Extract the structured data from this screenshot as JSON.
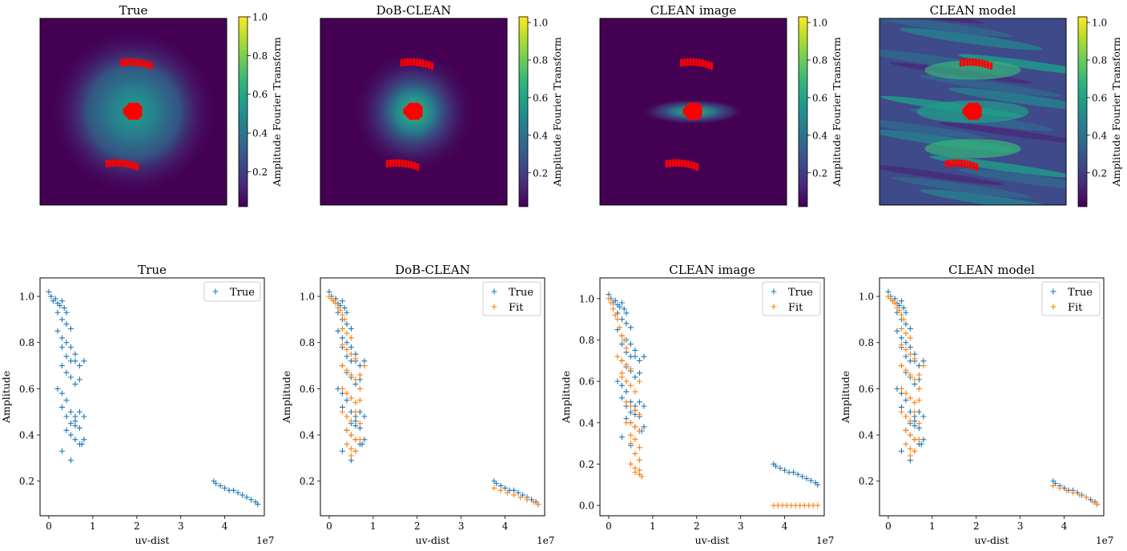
{
  "colors": {
    "true_series": "#1f77b4",
    "fit_series": "#ff7f0e",
    "uv_points": "#ff0000",
    "viridis": [
      "#440154",
      "#482878",
      "#3e4a89",
      "#31688e",
      "#26828e",
      "#1f9e89",
      "#35b779",
      "#6dcd59",
      "#b4de2c",
      "#fde725"
    ]
  },
  "image_panels": [
    {
      "title": "True",
      "colorbar_label": "Amplitude Fourier Transform",
      "colorbar_ticks": [
        "0.2",
        "0.4",
        "0.6",
        "0.8",
        "1.0"
      ],
      "colorbar_range": [
        0.02,
        1.0
      ],
      "pattern": "gaussian halo"
    },
    {
      "title": "DoB-CLEAN",
      "colorbar_label": "Amplitude Fourier Transform",
      "colorbar_ticks": [
        "0.2",
        "0.4",
        "0.6",
        "0.8",
        "1.0"
      ],
      "colorbar_range": [
        0.02,
        1.03
      ],
      "pattern": "compact halo"
    },
    {
      "title": "CLEAN image",
      "colorbar_label": "Amplitude Fourier Transform",
      "colorbar_ticks": [
        "0.2",
        "0.4",
        "0.6",
        "0.8",
        "1.0"
      ],
      "colorbar_range": [
        0.02,
        1.03
      ],
      "pattern": "horizontal elongated blob"
    },
    {
      "title": "CLEAN model",
      "colorbar_label": "Amplitude Fourier Transform",
      "colorbar_ticks": [
        "0.2",
        "0.4",
        "0.6",
        "0.8",
        "1.0"
      ],
      "colorbar_range": [
        0.02,
        1.03
      ],
      "pattern": "striped noise"
    }
  ],
  "chart_data": [
    {
      "type": "scatter",
      "title": "True",
      "xlabel": "uv-dist",
      "ylabel": "Amplitude",
      "x_scale_label": "1e7",
      "xlim": [
        -0.2,
        4.9
      ],
      "ylim": [
        0.05,
        1.08
      ],
      "xticks": [
        "0",
        "1",
        "2",
        "3",
        "4"
      ],
      "yticks": [
        "0.2",
        "0.4",
        "0.6",
        "0.8",
        "1.0"
      ],
      "legend": [
        "True"
      ],
      "legend_position": "upper right",
      "marker": "+",
      "series": [
        {
          "name": "True",
          "color": "#1f77b4",
          "x": [
            0.0,
            0.05,
            0.1,
            0.15,
            0.2,
            0.25,
            0.3,
            0.35,
            0.4,
            0.2,
            0.3,
            0.4,
            0.5,
            0.2,
            0.3,
            0.4,
            0.5,
            0.6,
            0.3,
            0.4,
            0.5,
            0.3,
            0.4,
            0.5,
            0.6,
            0.7,
            0.2,
            0.3,
            0.4,
            0.5,
            0.6,
            0.7,
            0.8,
            0.3,
            0.4,
            0.5,
            0.6,
            0.7,
            0.4,
            0.5,
            0.6,
            0.3,
            0.5,
            0.6,
            0.7,
            0.6,
            0.7,
            0.8,
            0.75,
            0.8,
            3.75,
            3.8,
            3.9,
            4.0,
            4.1,
            4.2,
            4.3,
            4.4,
            4.5,
            4.6,
            4.7,
            4.75
          ],
          "y": [
            1.02,
            1.0,
            0.98,
            0.99,
            0.97,
            0.96,
            0.98,
            0.95,
            0.93,
            0.93,
            0.9,
            0.88,
            0.86,
            0.85,
            0.82,
            0.8,
            0.78,
            0.75,
            0.78,
            0.74,
            0.72,
            0.7,
            0.67,
            0.65,
            0.72,
            0.7,
            0.6,
            0.58,
            0.55,
            0.5,
            0.62,
            0.64,
            0.72,
            0.52,
            0.48,
            0.45,
            0.48,
            0.5,
            0.42,
            0.4,
            0.44,
            0.33,
            0.29,
            0.38,
            0.36,
            0.46,
            0.43,
            0.48,
            0.36,
            0.38,
            0.2,
            0.19,
            0.18,
            0.17,
            0.16,
            0.16,
            0.15,
            0.14,
            0.13,
            0.12,
            0.11,
            0.1
          ]
        }
      ]
    },
    {
      "type": "scatter",
      "title": "DoB-CLEAN",
      "xlabel": "uv-dist",
      "ylabel": "Amplitude",
      "x_scale_label": "1e7",
      "xlim": [
        -0.2,
        4.9
      ],
      "ylim": [
        0.05,
        1.08
      ],
      "xticks": [
        "0",
        "1",
        "2",
        "3",
        "4"
      ],
      "yticks": [
        "0.2",
        "0.4",
        "0.6",
        "0.8",
        "1.0"
      ],
      "legend": [
        "True",
        "Fit"
      ],
      "legend_position": "upper right",
      "marker": "+",
      "series": [
        {
          "name": "True",
          "color": "#1f77b4",
          "x": [
            0.0,
            0.05,
            0.1,
            0.15,
            0.2,
            0.25,
            0.3,
            0.35,
            0.4,
            0.2,
            0.3,
            0.4,
            0.5,
            0.2,
            0.3,
            0.4,
            0.5,
            0.6,
            0.3,
            0.4,
            0.5,
            0.3,
            0.4,
            0.5,
            0.6,
            0.7,
            0.2,
            0.3,
            0.4,
            0.5,
            0.6,
            0.7,
            0.8,
            0.3,
            0.4,
            0.5,
            0.6,
            0.7,
            0.4,
            0.5,
            0.6,
            0.3,
            0.5,
            0.6,
            0.7,
            0.6,
            0.7,
            0.8,
            0.75,
            0.8,
            3.75,
            3.8,
            3.9,
            4.0,
            4.1,
            4.2,
            4.3,
            4.4,
            4.5,
            4.6,
            4.7,
            4.75
          ],
          "y": [
            1.02,
            1.0,
            0.98,
            0.99,
            0.97,
            0.96,
            0.98,
            0.95,
            0.93,
            0.93,
            0.9,
            0.88,
            0.86,
            0.85,
            0.82,
            0.8,
            0.78,
            0.75,
            0.78,
            0.74,
            0.72,
            0.7,
            0.67,
            0.65,
            0.72,
            0.7,
            0.6,
            0.58,
            0.55,
            0.5,
            0.62,
            0.64,
            0.72,
            0.52,
            0.48,
            0.45,
            0.48,
            0.5,
            0.42,
            0.4,
            0.44,
            0.33,
            0.29,
            0.38,
            0.36,
            0.46,
            0.43,
            0.48,
            0.36,
            0.38,
            0.2,
            0.19,
            0.18,
            0.17,
            0.16,
            0.16,
            0.15,
            0.14,
            0.13,
            0.12,
            0.11,
            0.1
          ]
        },
        {
          "name": "Fit",
          "color": "#ff7f0e",
          "x": [
            0.0,
            0.05,
            0.1,
            0.15,
            0.2,
            0.25,
            0.3,
            0.35,
            0.3,
            0.4,
            0.5,
            0.3,
            0.4,
            0.5,
            0.6,
            0.3,
            0.4,
            0.5,
            0.6,
            0.7,
            0.3,
            0.4,
            0.5,
            0.6,
            0.7,
            0.3,
            0.4,
            0.5,
            0.6,
            0.7,
            0.8,
            0.4,
            0.5,
            0.6,
            0.7,
            0.4,
            0.5,
            0.6,
            0.7,
            0.5,
            0.6,
            3.75,
            3.9,
            4.05,
            4.2,
            4.35,
            4.5,
            4.65,
            4.75
          ],
          "y": [
            1.0,
            0.99,
            0.98,
            0.97,
            0.95,
            0.94,
            0.92,
            0.9,
            0.86,
            0.84,
            0.82,
            0.79,
            0.77,
            0.75,
            0.73,
            0.7,
            0.68,
            0.66,
            0.64,
            0.66,
            0.6,
            0.58,
            0.56,
            0.54,
            0.6,
            0.5,
            0.48,
            0.46,
            0.5,
            0.55,
            0.7,
            0.42,
            0.4,
            0.38,
            0.45,
            0.36,
            0.34,
            0.33,
            0.38,
            0.31,
            0.33,
            0.17,
            0.16,
            0.15,
            0.14,
            0.13,
            0.12,
            0.11,
            0.1
          ]
        }
      ]
    },
    {
      "type": "scatter",
      "title": "CLEAN image",
      "xlabel": "uv-dist",
      "ylabel": "Amplitude",
      "x_scale_label": "1e7",
      "xlim": [
        -0.2,
        4.9
      ],
      "ylim": [
        -0.05,
        1.1
      ],
      "xticks": [
        "0",
        "1",
        "2",
        "3",
        "4"
      ],
      "yticks": [
        "0.0",
        "0.2",
        "0.4",
        "0.6",
        "0.8",
        "1.0"
      ],
      "legend": [
        "True",
        "Fit"
      ],
      "legend_position": "upper right",
      "marker": "+",
      "series": [
        {
          "name": "True",
          "color": "#1f77b4",
          "x": [
            0.0,
            0.05,
            0.1,
            0.15,
            0.2,
            0.25,
            0.3,
            0.35,
            0.4,
            0.2,
            0.3,
            0.4,
            0.5,
            0.2,
            0.3,
            0.4,
            0.5,
            0.6,
            0.3,
            0.4,
            0.5,
            0.3,
            0.4,
            0.5,
            0.6,
            0.7,
            0.2,
            0.3,
            0.4,
            0.5,
            0.6,
            0.7,
            0.8,
            0.3,
            0.4,
            0.5,
            0.6,
            0.7,
            0.4,
            0.5,
            0.6,
            0.3,
            0.5,
            0.6,
            0.7,
            0.6,
            0.7,
            0.8,
            0.75,
            0.8,
            3.75,
            3.8,
            3.9,
            4.0,
            4.1,
            4.2,
            4.3,
            4.4,
            4.5,
            4.6,
            4.7,
            4.75
          ],
          "y": [
            1.02,
            1.0,
            0.98,
            0.99,
            0.97,
            0.96,
            0.98,
            0.95,
            0.93,
            0.93,
            0.9,
            0.88,
            0.86,
            0.85,
            0.82,
            0.8,
            0.78,
            0.75,
            0.78,
            0.74,
            0.72,
            0.7,
            0.67,
            0.65,
            0.72,
            0.7,
            0.6,
            0.58,
            0.55,
            0.5,
            0.62,
            0.64,
            0.72,
            0.52,
            0.48,
            0.45,
            0.48,
            0.5,
            0.42,
            0.4,
            0.44,
            0.33,
            0.29,
            0.38,
            0.36,
            0.46,
            0.43,
            0.48,
            0.36,
            0.38,
            0.2,
            0.19,
            0.18,
            0.17,
            0.16,
            0.16,
            0.15,
            0.14,
            0.13,
            0.12,
            0.11,
            0.1
          ]
        },
        {
          "name": "Fit",
          "color": "#ff7f0e",
          "x": [
            0.0,
            0.05,
            0.1,
            0.15,
            0.2,
            0.25,
            0.3,
            0.35,
            0.4,
            0.2,
            0.3,
            0.4,
            0.5,
            0.3,
            0.4,
            0.5,
            0.6,
            0.7,
            0.3,
            0.4,
            0.5,
            0.6,
            0.7,
            0.4,
            0.5,
            0.6,
            0.7,
            0.4,
            0.5,
            0.6,
            0.7,
            0.5,
            0.6,
            0.7,
            0.5,
            0.6,
            0.7,
            0.6,
            0.7,
            0.75,
            3.75,
            3.85,
            3.95,
            4.05,
            4.15,
            4.25,
            4.35,
            4.45,
            4.55,
            4.65,
            4.75
          ],
          "y": [
            1.0,
            0.98,
            0.95,
            0.92,
            0.9,
            0.86,
            0.82,
            0.8,
            0.76,
            0.72,
            0.7,
            0.68,
            0.66,
            0.62,
            0.6,
            0.58,
            0.55,
            0.6,
            0.64,
            0.5,
            0.48,
            0.46,
            0.44,
            0.5,
            0.4,
            0.38,
            0.36,
            0.4,
            0.34,
            0.32,
            0.28,
            0.3,
            0.25,
            0.22,
            0.2,
            0.18,
            0.17,
            0.16,
            0.15,
            0.14,
            0.0,
            0.0,
            0.0,
            0.0,
            0.0,
            0.0,
            0.0,
            0.0,
            0.0,
            0.0,
            0.0
          ]
        }
      ]
    },
    {
      "type": "scatter",
      "title": "CLEAN model",
      "xlabel": "uv-dist",
      "ylabel": "Amplitude",
      "x_scale_label": "1e7",
      "xlim": [
        -0.2,
        4.9
      ],
      "ylim": [
        0.05,
        1.08
      ],
      "xticks": [
        "0",
        "1",
        "2",
        "3",
        "4"
      ],
      "yticks": [
        "0.2",
        "0.4",
        "0.6",
        "0.8",
        "1.0"
      ],
      "legend": [
        "True",
        "Fit"
      ],
      "legend_position": "upper right",
      "marker": "+",
      "series": [
        {
          "name": "True",
          "color": "#1f77b4",
          "x": [
            0.0,
            0.05,
            0.1,
            0.15,
            0.2,
            0.25,
            0.3,
            0.35,
            0.4,
            0.2,
            0.3,
            0.4,
            0.5,
            0.2,
            0.3,
            0.4,
            0.5,
            0.6,
            0.3,
            0.4,
            0.5,
            0.3,
            0.4,
            0.5,
            0.6,
            0.7,
            0.2,
            0.3,
            0.4,
            0.5,
            0.6,
            0.7,
            0.8,
            0.3,
            0.4,
            0.5,
            0.6,
            0.7,
            0.4,
            0.5,
            0.6,
            0.3,
            0.5,
            0.6,
            0.7,
            0.6,
            0.7,
            0.8,
            0.75,
            0.8,
            3.75,
            3.8,
            3.9,
            4.0,
            4.1,
            4.2,
            4.3,
            4.4,
            4.5,
            4.6,
            4.7,
            4.75
          ],
          "y": [
            1.02,
            1.0,
            0.98,
            0.99,
            0.97,
            0.96,
            0.98,
            0.95,
            0.93,
            0.93,
            0.9,
            0.88,
            0.86,
            0.85,
            0.82,
            0.8,
            0.78,
            0.75,
            0.78,
            0.74,
            0.72,
            0.7,
            0.67,
            0.65,
            0.72,
            0.7,
            0.6,
            0.58,
            0.55,
            0.5,
            0.62,
            0.64,
            0.72,
            0.52,
            0.48,
            0.45,
            0.48,
            0.5,
            0.42,
            0.4,
            0.44,
            0.33,
            0.29,
            0.38,
            0.36,
            0.46,
            0.43,
            0.48,
            0.36,
            0.38,
            0.2,
            0.19,
            0.18,
            0.17,
            0.16,
            0.16,
            0.15,
            0.14,
            0.13,
            0.12,
            0.11,
            0.1
          ]
        },
        {
          "name": "Fit",
          "color": "#ff7f0e",
          "x": [
            0.0,
            0.05,
            0.1,
            0.15,
            0.2,
            0.25,
            0.3,
            0.35,
            0.3,
            0.4,
            0.5,
            0.3,
            0.4,
            0.5,
            0.6,
            0.3,
            0.4,
            0.5,
            0.6,
            0.7,
            0.3,
            0.4,
            0.5,
            0.6,
            0.7,
            0.3,
            0.4,
            0.5,
            0.6,
            0.7,
            0.8,
            0.4,
            0.5,
            0.6,
            0.7,
            0.4,
            0.5,
            0.6,
            0.7,
            0.5,
            0.6,
            3.75,
            3.9,
            4.05,
            4.2,
            4.35,
            4.5,
            4.65,
            4.75
          ],
          "y": [
            1.0,
            0.99,
            0.98,
            0.97,
            0.95,
            0.94,
            0.92,
            0.9,
            0.86,
            0.84,
            0.82,
            0.79,
            0.77,
            0.75,
            0.73,
            0.7,
            0.68,
            0.66,
            0.64,
            0.66,
            0.6,
            0.58,
            0.56,
            0.54,
            0.6,
            0.5,
            0.48,
            0.46,
            0.5,
            0.55,
            0.7,
            0.42,
            0.4,
            0.38,
            0.45,
            0.36,
            0.34,
            0.33,
            0.38,
            0.31,
            0.33,
            0.18,
            0.17,
            0.16,
            0.15,
            0.14,
            0.13,
            0.11,
            0.1
          ]
        }
      ]
    }
  ]
}
